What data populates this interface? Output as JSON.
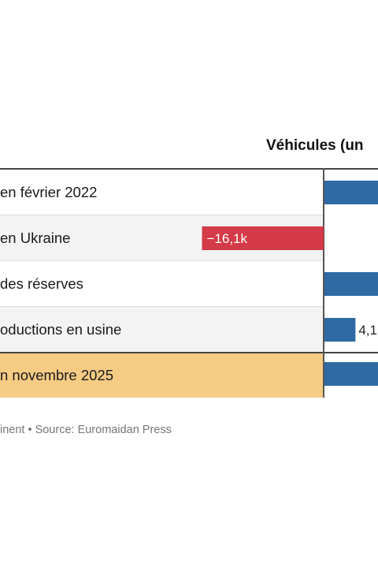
{
  "header": {
    "column_title": "Véhicules (un"
  },
  "rows": [
    {
      "label": "en février 2022"
    },
    {
      "label": "en Ukraine"
    },
    {
      "label": "des réserves"
    },
    {
      "label": "oductions en usine"
    },
    {
      "label": "n novembre 2025"
    }
  ],
  "footer": {
    "source": "inent • Source: Euromaidan Press"
  },
  "colors": {
    "positive": "#2f6aa4",
    "negative": "#d43a47",
    "total_row": "#f6cb84"
  },
  "chart_data": {
    "type": "bar",
    "orientation": "horizontal",
    "categories": [
      "en février 2022",
      "en Ukraine",
      "des réserves",
      "oductions en usine",
      "n novembre 2025"
    ],
    "values": [
      null,
      -16.1,
      null,
      4.1,
      null
    ],
    "data_labels": [
      "",
      "−16,1k",
      "",
      "4,1",
      ""
    ],
    "title": "Véhicules (un",
    "xlabel": "",
    "ylabel": ""
  }
}
